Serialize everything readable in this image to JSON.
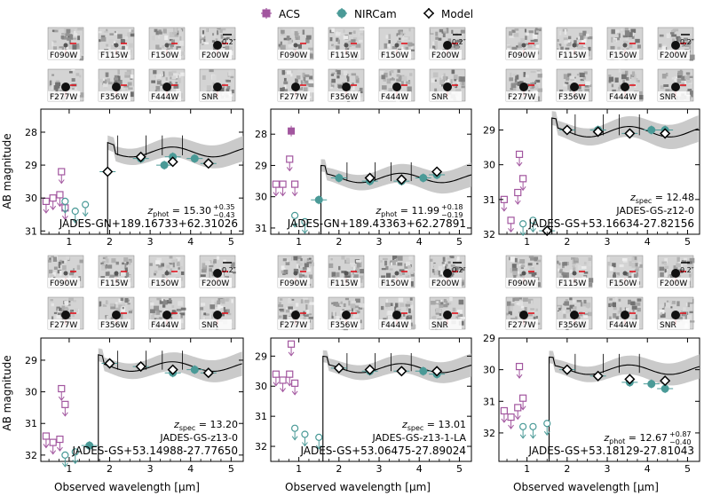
{
  "legend": {
    "items": [
      {
        "label": "ACS",
        "color": "#a2569f",
        "marker": "square"
      },
      {
        "label": "NIRCam",
        "color": "#4a9a97",
        "marker": "circle"
      },
      {
        "label": "Model",
        "color": "#000000",
        "marker": "diamond"
      }
    ]
  },
  "ylabel": "AB magnitude",
  "xlabel": "Observed wavelength  [μm]",
  "colors": {
    "acs": "#a2569f",
    "nircam": "#4a9a97",
    "model": "#000000",
    "band": "#bdbdbd",
    "cutout_marker": "#e0141e"
  },
  "filters": [
    "F090W",
    "F115W",
    "F150W",
    "F200W",
    "F277W",
    "F356W",
    "F444W",
    "SNR"
  ],
  "scale_label": "0.2″",
  "chart_data": [
    {
      "type": "scatter",
      "panel": "top-left",
      "redshift_prefix": "z",
      "redshift_sub": "phot",
      "redshift_value": " = 15.30",
      "err_plus": "+0.35",
      "err_minus": "−0.43",
      "name": "JADES-GN+189.16733+62.31026",
      "ylim": [
        31.1,
        27.3
      ],
      "xlim": [
        0.3,
        5.3
      ],
      "xticks": [
        1,
        2,
        3,
        4,
        5
      ],
      "yticks": [
        28,
        29,
        30,
        31
      ],
      "break": 1.95,
      "model_level": 28.6,
      "acs": [
        {
          "x": 0.43,
          "y": 30.1,
          "limit": true
        },
        {
          "x": 0.6,
          "y": 30.0,
          "limit": true
        },
        {
          "x": 0.77,
          "y": 29.9,
          "limit": true
        },
        {
          "x": 0.81,
          "y": 29.2,
          "limit": true
        },
        {
          "x": 0.9,
          "y": 30.3,
          "limit": true
        }
      ],
      "nircam": [
        {
          "x": 0.9,
          "y": 30.1,
          "limit": true
        },
        {
          "x": 1.15,
          "y": 30.4,
          "limit": true
        },
        {
          "x": 1.4,
          "y": 30.2,
          "limit": true
        },
        {
          "x": 1.95,
          "y": 29.2
        },
        {
          "x": 2.77,
          "y": 28.8
        },
        {
          "x": 3.35,
          "y": 29.0
        },
        {
          "x": 3.56,
          "y": 28.75
        },
        {
          "x": 4.1,
          "y": 28.8
        },
        {
          "x": 4.44,
          "y": 28.95
        }
      ],
      "model": [
        {
          "x": 1.95,
          "y": 29.2
        },
        {
          "x": 2.77,
          "y": 28.75
        },
        {
          "x": 3.56,
          "y": 28.9
        },
        {
          "x": 4.44,
          "y": 28.95
        }
      ]
    },
    {
      "type": "scatter",
      "panel": "top-middle",
      "redshift_prefix": "z",
      "redshift_sub": "phot",
      "redshift_value": " = 11.99",
      "err_plus": "+0.18",
      "err_minus": "−0.19",
      "name": "JADES-GN+189.43363+62.27891",
      "ylim": [
        31.2,
        27.2
      ],
      "xlim": [
        0.3,
        5.3
      ],
      "xticks": [
        1,
        2,
        3,
        4,
        5
      ],
      "yticks": [
        28,
        29,
        30,
        31
      ],
      "break": 1.55,
      "model_level": 29.4,
      "acs": [
        {
          "x": 0.43,
          "y": 29.6,
          "limit": true
        },
        {
          "x": 0.6,
          "y": 29.6,
          "limit": true
        },
        {
          "x": 0.77,
          "y": 28.8,
          "limit": true
        },
        {
          "x": 0.81,
          "y": 27.9
        },
        {
          "x": 0.9,
          "y": 29.6,
          "limit": true
        }
      ],
      "nircam": [
        {
          "x": 0.9,
          "y": 30.6,
          "limit": true
        },
        {
          "x": 1.15,
          "y": 30.8,
          "limit": true
        },
        {
          "x": 1.5,
          "y": 30.1
        },
        {
          "x": 2.0,
          "y": 29.4
        },
        {
          "x": 2.77,
          "y": 29.5
        },
        {
          "x": 3.56,
          "y": 29.5
        },
        {
          "x": 4.1,
          "y": 29.4
        },
        {
          "x": 4.44,
          "y": 29.3
        }
      ],
      "model": [
        {
          "x": 2.77,
          "y": 29.4
        },
        {
          "x": 3.56,
          "y": 29.45
        },
        {
          "x": 4.44,
          "y": 29.2
        }
      ]
    },
    {
      "type": "scatter",
      "panel": "top-right",
      "redshift_prefix": "z",
      "redshift_sub": "spec",
      "redshift_value": " = 12.48",
      "err_plus": "",
      "err_minus": "",
      "subtitle": "JADES-GS-z12-0",
      "name": "JADES-GS+53.16634-27.82156",
      "ylim": [
        32.0,
        28.4
      ],
      "xlim": [
        0.3,
        5.3
      ],
      "xticks": [
        1,
        2,
        3,
        4,
        5
      ],
      "yticks": [
        29,
        30,
        31,
        32
      ],
      "break": 1.62,
      "model_level": 29.05,
      "acs": [
        {
          "x": 0.43,
          "y": 31.0,
          "limit": true
        },
        {
          "x": 0.6,
          "y": 31.6,
          "limit": true
        },
        {
          "x": 0.77,
          "y": 30.8,
          "limit": true
        },
        {
          "x": 0.81,
          "y": 29.7,
          "limit": true
        },
        {
          "x": 0.9,
          "y": 30.4,
          "limit": true
        }
      ],
      "nircam": [
        {
          "x": 0.9,
          "y": 31.7,
          "limit": true
        },
        {
          "x": 1.15,
          "y": 31.6,
          "limit": true
        },
        {
          "x": 1.5,
          "y": 31.9
        },
        {
          "x": 2.0,
          "y": 29.0
        },
        {
          "x": 2.77,
          "y": 29.0
        },
        {
          "x": 3.56,
          "y": 29.1
        },
        {
          "x": 4.1,
          "y": 29.0
        },
        {
          "x": 4.44,
          "y": 29.0
        }
      ],
      "model": [
        {
          "x": 1.5,
          "y": 31.9
        },
        {
          "x": 2.0,
          "y": 29.0
        },
        {
          "x": 2.77,
          "y": 29.05
        },
        {
          "x": 3.56,
          "y": 29.1
        },
        {
          "x": 4.44,
          "y": 29.1
        }
      ]
    },
    {
      "type": "scatter",
      "panel": "bottom-left",
      "redshift_prefix": "z",
      "redshift_sub": "spec",
      "redshift_value": " = 13.20",
      "err_plus": "",
      "err_minus": "",
      "subtitle": "JADES-GS-z13-0",
      "name": "JADES-GS+53.14988-27.77650",
      "ylim": [
        32.2,
        28.3
      ],
      "xlim": [
        0.3,
        5.3
      ],
      "xticks": [
        1,
        2,
        3,
        4,
        5
      ],
      "yticks": [
        29,
        30,
        31,
        32
      ],
      "break": 1.72,
      "model_level": 29.2,
      "acs": [
        {
          "x": 0.43,
          "y": 31.4,
          "limit": true
        },
        {
          "x": 0.6,
          "y": 31.6,
          "limit": true
        },
        {
          "x": 0.77,
          "y": 31.5,
          "limit": true
        },
        {
          "x": 0.81,
          "y": 29.9,
          "limit": true
        },
        {
          "x": 0.9,
          "y": 30.4,
          "limit": true
        }
      ],
      "nircam": [
        {
          "x": 0.9,
          "y": 32.0,
          "limit": true
        },
        {
          "x": 1.15,
          "y": 31.9,
          "limit": true
        },
        {
          "x": 1.5,
          "y": 31.7
        },
        {
          "x": 2.0,
          "y": 29.1
        },
        {
          "x": 2.77,
          "y": 29.2
        },
        {
          "x": 3.56,
          "y": 29.4
        },
        {
          "x": 4.1,
          "y": 29.3
        },
        {
          "x": 4.44,
          "y": 29.4
        }
      ],
      "model": [
        {
          "x": 2.0,
          "y": 29.1
        },
        {
          "x": 2.77,
          "y": 29.2
        },
        {
          "x": 3.56,
          "y": 29.3
        },
        {
          "x": 4.44,
          "y": 29.4
        }
      ]
    },
    {
      "type": "scatter",
      "panel": "bottom-middle",
      "redshift_prefix": "z",
      "redshift_sub": "spec",
      "redshift_value": " = 13.01",
      "err_plus": "",
      "err_minus": "",
      "subtitle": "JADES-GS-z13-1-LA",
      "name": "JADES-GS+53.06475-27.89024",
      "ylim": [
        32.5,
        28.4
      ],
      "xlim": [
        0.3,
        5.3
      ],
      "xticks": [
        1,
        2,
        3,
        4,
        5
      ],
      "yticks": [
        29,
        30,
        31,
        32
      ],
      "break": 1.6,
      "model_level": 29.4,
      "acs": [
        {
          "x": 0.43,
          "y": 29.6,
          "limit": true
        },
        {
          "x": 0.6,
          "y": 29.8,
          "limit": true
        },
        {
          "x": 0.77,
          "y": 29.6,
          "limit": true
        },
        {
          "x": 0.81,
          "y": 28.6,
          "limit": true
        },
        {
          "x": 0.9,
          "y": 29.9,
          "limit": true
        }
      ],
      "nircam": [
        {
          "x": 0.9,
          "y": 31.4,
          "limit": true
        },
        {
          "x": 1.15,
          "y": 31.6,
          "limit": true
        },
        {
          "x": 1.5,
          "y": 31.7,
          "limit": true
        },
        {
          "x": 2.0,
          "y": 29.4
        },
        {
          "x": 2.77,
          "y": 29.5
        },
        {
          "x": 3.56,
          "y": 29.5
        },
        {
          "x": 4.1,
          "y": 29.5
        },
        {
          "x": 4.44,
          "y": 29.6
        }
      ],
      "model": [
        {
          "x": 2.0,
          "y": 29.4
        },
        {
          "x": 2.77,
          "y": 29.45
        },
        {
          "x": 3.56,
          "y": 29.5
        },
        {
          "x": 4.44,
          "y": 29.5
        }
      ]
    },
    {
      "type": "scatter",
      "panel": "bottom-right",
      "redshift_prefix": "z",
      "redshift_sub": "phot",
      "redshift_value": " = 12.67",
      "err_plus": "+0.87",
      "err_minus": "−0.40",
      "name": "JADES-GS+53.18129-27.81043",
      "ylim": [
        32.9,
        29.0
      ],
      "xlim": [
        0.3,
        5.3
      ],
      "xticks": [
        1,
        2,
        3,
        4,
        5
      ],
      "yticks": [
        29,
        30,
        31,
        32
      ],
      "break": 1.55,
      "model_level": 30.0,
      "acs": [
        {
          "x": 0.43,
          "y": 31.3,
          "limit": true
        },
        {
          "x": 0.6,
          "y": 31.5,
          "limit": true
        },
        {
          "x": 0.77,
          "y": 31.2,
          "limit": true
        },
        {
          "x": 0.81,
          "y": 29.9,
          "limit": true
        },
        {
          "x": 0.9,
          "y": 30.9,
          "limit": true
        }
      ],
      "nircam": [
        {
          "x": 0.9,
          "y": 31.8,
          "limit": true
        },
        {
          "x": 1.15,
          "y": 31.8,
          "limit": true
        },
        {
          "x": 1.5,
          "y": 31.7,
          "limit": true
        },
        {
          "x": 2.0,
          "y": 30.0
        },
        {
          "x": 2.77,
          "y": 30.2
        },
        {
          "x": 3.56,
          "y": 30.4
        },
        {
          "x": 4.1,
          "y": 30.45
        },
        {
          "x": 4.44,
          "y": 30.6
        }
      ],
      "model": [
        {
          "x": 2.0,
          "y": 30.0
        },
        {
          "x": 2.77,
          "y": 30.2
        },
        {
          "x": 3.56,
          "y": 30.3
        },
        {
          "x": 4.44,
          "y": 30.35
        }
      ]
    }
  ]
}
